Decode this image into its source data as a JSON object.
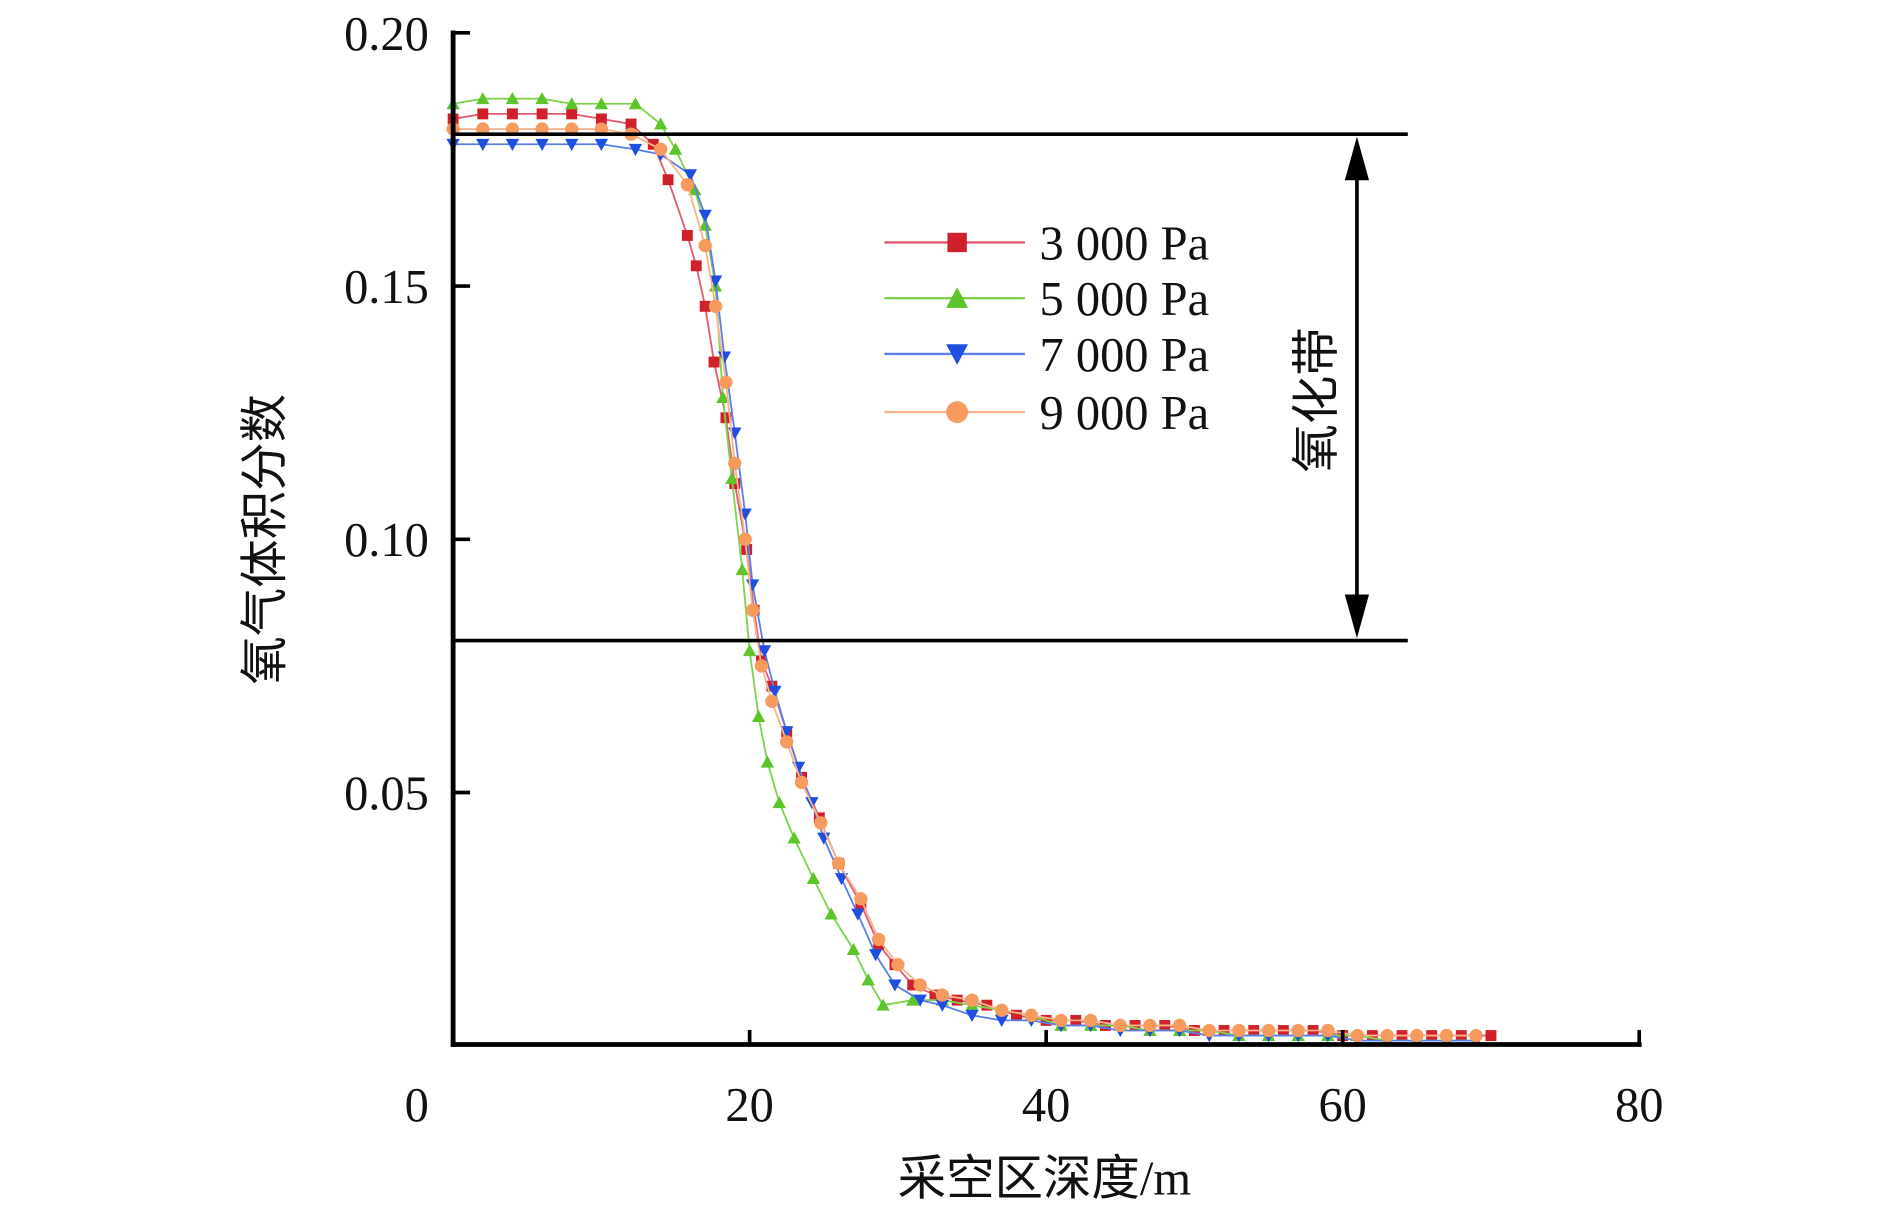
{
  "chart_data": {
    "type": "line",
    "title": "",
    "xlabel": "采空区深度/m",
    "ylabel": "氧气体积分数",
    "xlim": [
      0,
      80
    ],
    "ylim": [
      0,
      0.2
    ],
    "xticks": [
      "0",
      "20",
      "40",
      "60",
      "80"
    ],
    "yticks": [
      "0.05",
      "0.10",
      "0.15",
      "0.20"
    ],
    "xtick_values": [
      0,
      20,
      40,
      60,
      80
    ],
    "ytick_values": [
      0.05,
      0.1,
      0.15,
      0.2
    ],
    "grid": false,
    "legend_position": "upper-center",
    "annotation": {
      "label": "氧化带",
      "upper": 0.18,
      "lower": 0.08
    },
    "series": [
      {
        "name": "3 000 Pa",
        "color": "#d0202a",
        "line": "#e35a70",
        "marker": "square",
        "x": [
          0,
          2,
          4,
          6,
          8,
          10,
          12,
          13.5,
          14.5,
          15.8,
          16.4,
          17,
          17.6,
          18.4,
          19,
          19.8,
          20.3,
          20.8,
          21.5,
          22.5,
          23.5,
          24.7,
          26,
          27.5,
          28.7,
          29.8,
          31,
          32.5,
          34,
          36,
          38,
          40,
          42,
          44,
          46,
          48,
          50,
          52,
          54,
          56,
          58,
          60,
          62,
          64,
          66,
          68,
          70
        ],
        "y": [
          0.183,
          0.184,
          0.184,
          0.184,
          0.184,
          0.183,
          0.182,
          0.178,
          0.171,
          0.16,
          0.154,
          0.146,
          0.135,
          0.124,
          0.111,
          0.098,
          0.086,
          0.076,
          0.071,
          0.062,
          0.053,
          0.045,
          0.036,
          0.028,
          0.02,
          0.016,
          0.012,
          0.01,
          0.009,
          0.008,
          0.006,
          0.005,
          0.005,
          0.004,
          0.004,
          0.004,
          0.003,
          0.003,
          0.003,
          0.003,
          0.003,
          0.002,
          0.002,
          0.002,
          0.002,
          0.002,
          0.002
        ]
      },
      {
        "name": "5 000 Pa",
        "color": "#5cc52a",
        "line": "#7fd24f",
        "marker": "triangle-up",
        "x": [
          0,
          2,
          4,
          6,
          8,
          10,
          12.3,
          14,
          15,
          16.3,
          17,
          17.7,
          18.2,
          18.8,
          19.5,
          20,
          20.6,
          21.2,
          22,
          23,
          24.3,
          25.5,
          27,
          28,
          29,
          31,
          33,
          35,
          37,
          39,
          41,
          43,
          45,
          47,
          49,
          51,
          53,
          55,
          57,
          59,
          61,
          63,
          65,
          67,
          69
        ],
        "y": [
          0.186,
          0.187,
          0.187,
          0.187,
          0.186,
          0.186,
          0.186,
          0.182,
          0.177,
          0.169,
          0.162,
          0.15,
          0.128,
          0.112,
          0.094,
          0.078,
          0.065,
          0.056,
          0.048,
          0.041,
          0.033,
          0.026,
          0.019,
          0.013,
          0.008,
          0.009,
          0.009,
          0.008,
          0.007,
          0.006,
          0.004,
          0.004,
          0.004,
          0.003,
          0.003,
          0.003,
          0.002,
          0.002,
          0.002,
          0.002,
          0.002,
          0.001,
          0.001,
          0.001,
          0.001
        ]
      },
      {
        "name": "7 000 Pa",
        "color": "#1f4fe0",
        "line": "#5a7fe8",
        "marker": "triangle-down",
        "x": [
          0,
          2,
          4,
          6,
          8,
          10,
          12.3,
          14,
          16,
          17,
          17.7,
          18.3,
          19,
          19.7,
          20.2,
          21,
          21.7,
          22.5,
          23.3,
          24.2,
          25,
          26.2,
          27.3,
          28.5,
          29.8,
          31.5,
          33,
          35,
          37,
          39,
          41,
          43,
          45,
          47,
          49,
          51,
          53,
          55,
          57,
          59,
          61,
          63,
          65,
          67,
          69
        ],
        "y": [
          0.178,
          0.178,
          0.178,
          0.178,
          0.178,
          0.178,
          0.177,
          0.176,
          0.172,
          0.164,
          0.151,
          0.136,
          0.121,
          0.105,
          0.091,
          0.078,
          0.07,
          0.062,
          0.055,
          0.048,
          0.041,
          0.033,
          0.026,
          0.018,
          0.012,
          0.009,
          0.008,
          0.006,
          0.005,
          0.005,
          0.004,
          0.004,
          0.003,
          0.003,
          0.003,
          0.002,
          0.002,
          0.002,
          0.002,
          0.002,
          0.001,
          0.001,
          0.001,
          0.001,
          0.001
        ]
      },
      {
        "name": "9 000 Pa",
        "color": "#f79a5e",
        "line": "#f8b48a",
        "marker": "circle",
        "x": [
          0,
          2,
          4,
          6,
          8,
          10,
          12,
          14,
          15.8,
          17,
          17.7,
          18.4,
          19,
          19.7,
          20.2,
          20.8,
          21.5,
          22.5,
          23.5,
          24.8,
          26,
          27.5,
          28.7,
          30,
          31.5,
          33,
          35,
          37,
          39,
          41,
          43,
          45,
          47,
          49,
          51,
          53,
          55,
          57,
          59,
          61,
          63,
          65,
          67,
          69
        ],
        "y": [
          0.181,
          0.181,
          0.181,
          0.181,
          0.181,
          0.181,
          0.18,
          0.177,
          0.17,
          0.158,
          0.146,
          0.131,
          0.115,
          0.1,
          0.086,
          0.075,
          0.068,
          0.06,
          0.052,
          0.044,
          0.036,
          0.029,
          0.021,
          0.016,
          0.012,
          0.01,
          0.009,
          0.007,
          0.006,
          0.005,
          0.005,
          0.004,
          0.004,
          0.004,
          0.003,
          0.003,
          0.003,
          0.003,
          0.003,
          0.002,
          0.002,
          0.002,
          0.002,
          0.002
        ]
      }
    ]
  }
}
